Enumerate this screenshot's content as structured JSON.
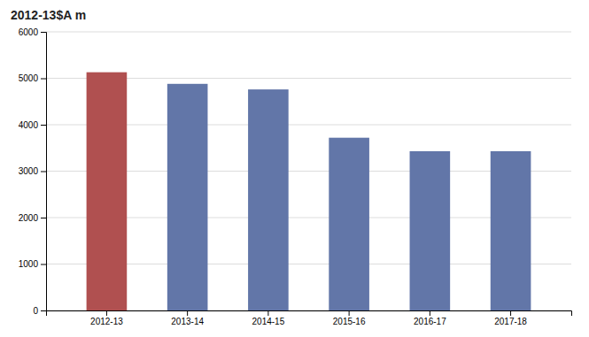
{
  "chart_data": {
    "type": "bar",
    "title": "2012-13$A m",
    "categories": [
      "2012-13",
      "2013-14",
      "2014-15",
      "2015-16",
      "2016-17",
      "2017-18"
    ],
    "values": [
      5130,
      4880,
      4760,
      3720,
      3430,
      3430
    ],
    "colors": [
      "#b05050",
      "#6276a8",
      "#6276a8",
      "#6276a8",
      "#6276a8",
      "#6276a8"
    ],
    "ylim": [
      0,
      6000
    ],
    "yticks": [
      0,
      1000,
      2000,
      3000,
      4000,
      5000,
      6000
    ],
    "grid": true
  }
}
